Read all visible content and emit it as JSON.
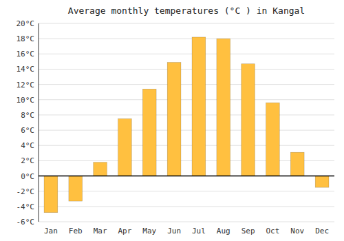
{
  "chart_data": {
    "type": "bar",
    "title": "Average monthly temperatures (°C ) in Kangal",
    "categories": [
      "Jan",
      "Feb",
      "Mar",
      "Apr",
      "May",
      "Jun",
      "Jul",
      "Aug",
      "Sep",
      "Oct",
      "Nov",
      "Dec"
    ],
    "values": [
      -4.8,
      -3.3,
      1.8,
      7.5,
      11.4,
      14.9,
      18.2,
      18.0,
      14.7,
      9.6,
      3.1,
      -1.5
    ],
    "color": "#FFC040",
    "ylim": [
      -6,
      20
    ],
    "yticks": [
      {
        "value": -6,
        "label": "-6°C"
      },
      {
        "value": -4,
        "label": "-4°C"
      },
      {
        "value": -2,
        "label": "-2°C"
      },
      {
        "value": 0,
        "label": "0°C"
      },
      {
        "value": 2,
        "label": "2°C"
      },
      {
        "value": 4,
        "label": "4°C"
      },
      {
        "value": 6,
        "label": "6°C"
      },
      {
        "value": 8,
        "label": "8°C"
      },
      {
        "value": 10,
        "label": "10°C"
      },
      {
        "value": 12,
        "label": "12°C"
      },
      {
        "value": 14,
        "label": "14°C"
      },
      {
        "value": 16,
        "label": "16°C"
      },
      {
        "value": 18,
        "label": "18°C"
      },
      {
        "value": 20,
        "label": "20°C"
      }
    ],
    "grid": true
  }
}
